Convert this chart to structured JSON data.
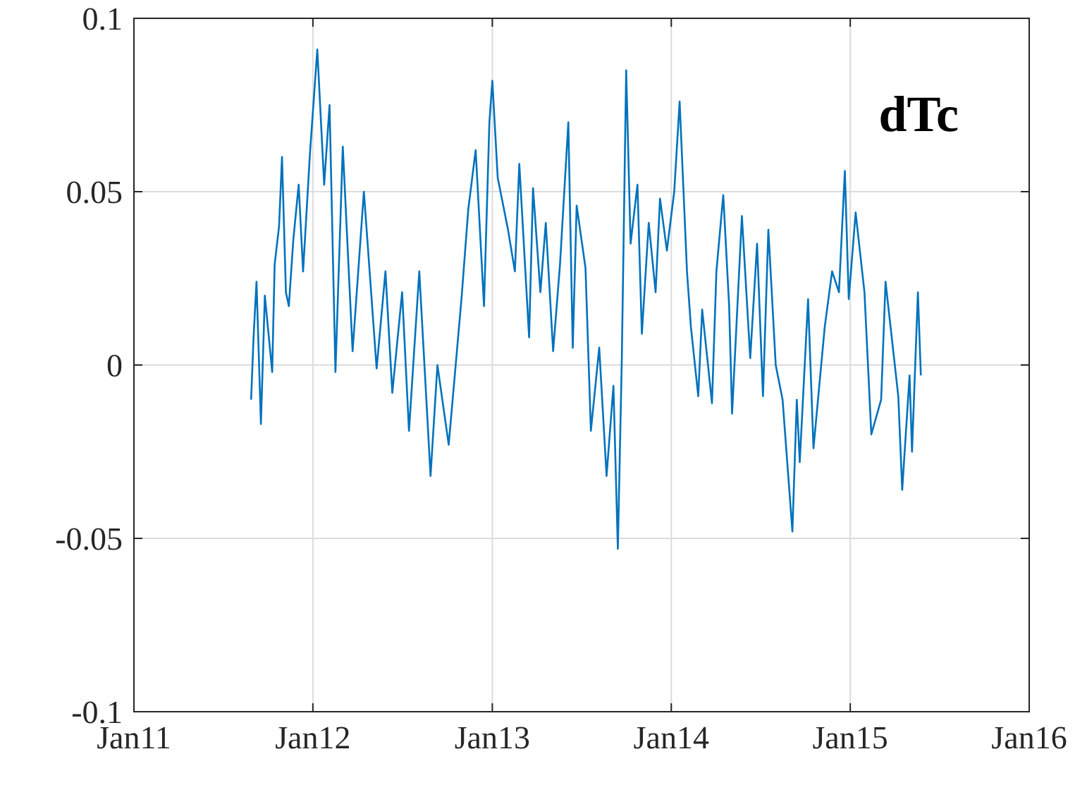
{
  "chart_data": {
    "type": "line",
    "annotations": [
      "dTc"
    ],
    "x": [
      "2011-08-28",
      "2011-09-02",
      "2011-09-08",
      "2011-09-17",
      "2011-09-25",
      "2011-10-10",
      "2011-10-15",
      "2011-10-24",
      "2011-10-30",
      "2011-11-07",
      "2011-11-13",
      "2011-11-22",
      "2011-12-03",
      "2011-12-12",
      "2011-12-26",
      "2012-01-10",
      "2012-01-24",
      "2012-02-04",
      "2012-02-16",
      "2012-03-02",
      "2012-03-22",
      "2012-04-14",
      "2012-05-10",
      "2012-05-28",
      "2012-06-11",
      "2012-07-01",
      "2012-07-15",
      "2012-08-05",
      "2012-08-28",
      "2012-09-11",
      "2012-10-04",
      "2012-10-30",
      "2012-11-13",
      "2012-11-28",
      "2012-12-15",
      "2012-12-26",
      "2013-01-01",
      "2013-01-12",
      "2013-02-02",
      "2013-02-16",
      "2013-02-25",
      "2013-03-17",
      "2013-03-25",
      "2013-04-09",
      "2013-04-20",
      "2013-05-05",
      "2013-05-19",
      "2013-06-05",
      "2013-06-14",
      "2013-06-22",
      "2013-07-10",
      "2013-07-21",
      "2013-08-07",
      "2013-08-22",
      "2013-09-05",
      "2013-09-14",
      "2013-09-22",
      "2013-10-01",
      "2013-10-10",
      "2013-10-24",
      "2013-11-02",
      "2013-11-16",
      "2013-11-30",
      "2013-12-09",
      "2013-12-23",
      "2014-01-07",
      "2014-01-18",
      "2014-02-02",
      "2014-02-10",
      "2014-02-25",
      "2014-03-05",
      "2014-03-25",
      "2014-04-03",
      "2014-04-17",
      "2014-04-29",
      "2014-05-05",
      "2014-05-25",
      "2014-06-11",
      "2014-06-25",
      "2014-07-07",
      "2014-07-18",
      "2014-08-02",
      "2014-08-16",
      "2014-09-05",
      "2014-09-14",
      "2014-09-20",
      "2014-10-07",
      "2014-10-18",
      "2014-11-10",
      "2014-11-25",
      "2014-12-09",
      "2014-12-21",
      "2014-12-29",
      "2015-01-12",
      "2015-01-30",
      "2015-02-13",
      "2015-03-05",
      "2015-03-14",
      "2015-04-09",
      "2015-04-17",
      "2015-05-02",
      "2015-05-07",
      "2015-05-19",
      "2015-05-25"
    ],
    "series": [
      {
        "color": "#0072bd",
        "values": [
          -0.01,
          0.008,
          0.024,
          -0.017,
          0.02,
          -0.002,
          0.029,
          0.04,
          0.06,
          0.021,
          0.017,
          0.036,
          0.052,
          0.027,
          0.061,
          0.091,
          0.052,
          0.075,
          -0.002,
          0.063,
          0.004,
          0.05,
          -0.001,
          0.027,
          -0.008,
          0.021,
          -0.019,
          0.027,
          -0.032,
          0.0,
          -0.023,
          0.019,
          0.045,
          0.062,
          0.017,
          0.07,
          0.082,
          0.054,
          0.039,
          0.027,
          0.058,
          0.008,
          0.051,
          0.021,
          0.041,
          0.004,
          0.029,
          0.07,
          0.005,
          0.046,
          0.028,
          -0.019,
          0.005,
          -0.032,
          -0.006,
          -0.053,
          0.001,
          0.085,
          0.035,
          0.052,
          0.009,
          0.041,
          0.021,
          0.048,
          0.033,
          0.05,
          0.076,
          0.027,
          0.011,
          -0.009,
          0.016,
          -0.011,
          0.027,
          0.049,
          0.017,
          -0.014,
          0.043,
          0.002,
          0.035,
          -0.009,
          0.039,
          0.0,
          -0.01,
          -0.048,
          -0.01,
          -0.028,
          0.019,
          -0.024,
          0.011,
          0.027,
          0.021,
          0.056,
          0.019,
          0.044,
          0.021,
          -0.02,
          -0.01,
          0.024,
          -0.009,
          -0.036,
          -0.003,
          -0.025,
          0.021,
          -0.003
        ]
      }
    ],
    "xlim": [
      "2011-01-01",
      "2016-01-01"
    ],
    "xticks": [
      {
        "value": "2011-01-01",
        "label": "Jan11"
      },
      {
        "value": "2012-01-01",
        "label": "Jan12"
      },
      {
        "value": "2013-01-01",
        "label": "Jan13"
      },
      {
        "value": "2014-01-01",
        "label": "Jan14"
      },
      {
        "value": "2015-01-01",
        "label": "Jan15"
      },
      {
        "value": "2016-01-01",
        "label": "Jan16"
      }
    ],
    "ylim": [
      -0.1,
      0.1
    ],
    "yticks": [
      -0.1,
      -0.05,
      0,
      0.05,
      0.1
    ],
    "grid": true
  }
}
